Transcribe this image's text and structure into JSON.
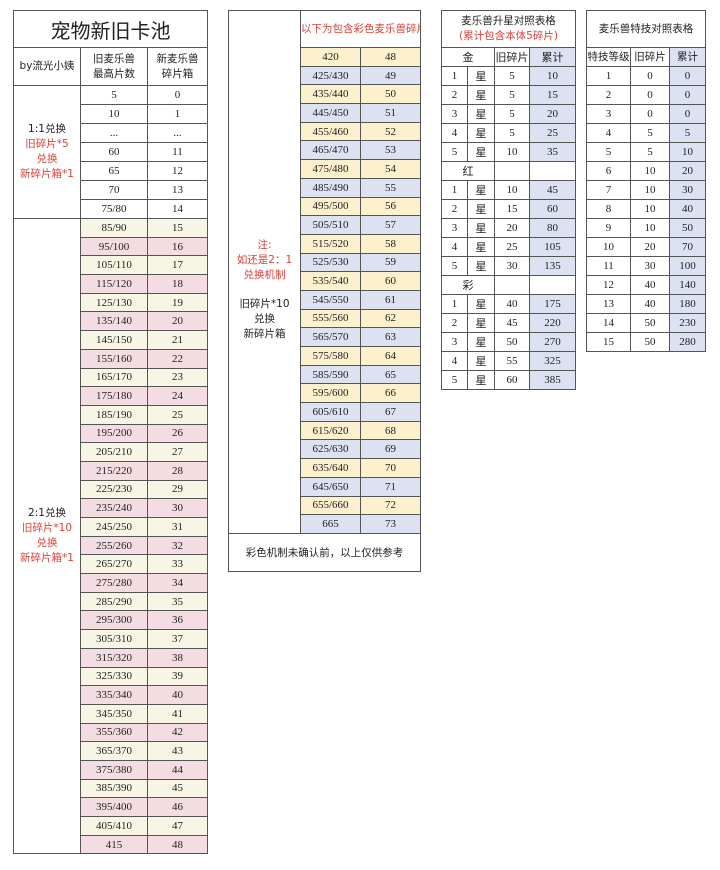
{
  "pool_table": {
    "title": "宠物新旧卡池",
    "author": "by流光小姨",
    "col_old": "旧麦乐兽\n最高片数",
    "col_new": "新麦乐兽\n碎片箱",
    "group1": {
      "line1": "1:1兑换",
      "line2": "旧碎片*5",
      "line3": "兑换",
      "line4": "新碎片箱*1",
      "rows": [
        [
          "5",
          "0"
        ],
        [
          "10",
          "1"
        ],
        [
          "...",
          "..."
        ],
        [
          "60",
          "11"
        ],
        [
          "65",
          "12"
        ],
        [
          "70",
          "13"
        ],
        [
          "75/80",
          "14"
        ]
      ]
    },
    "group2": {
      "line1": "2:1兑换",
      "line2": "旧碎片*10",
      "line3": "兑换",
      "line4": "新碎片箱*1",
      "rows": [
        [
          "85/90",
          "15"
        ],
        [
          "95/100",
          "16"
        ],
        [
          "105/110",
          "17"
        ],
        [
          "115/120",
          "18"
        ],
        [
          "125/130",
          "19"
        ],
        [
          "135/140",
          "20"
        ],
        [
          "145/150",
          "21"
        ],
        [
          "155/160",
          "22"
        ],
        [
          "165/170",
          "23"
        ],
        [
          "175/180",
          "24"
        ],
        [
          "185/190",
          "25"
        ],
        [
          "195/200",
          "26"
        ],
        [
          "205/210",
          "27"
        ],
        [
          "215/220",
          "28"
        ],
        [
          "225/230",
          "29"
        ],
        [
          "235/240",
          "30"
        ],
        [
          "245/250",
          "31"
        ],
        [
          "255/260",
          "32"
        ],
        [
          "265/270",
          "33"
        ],
        [
          "275/280",
          "34"
        ],
        [
          "285/290",
          "35"
        ],
        [
          "295/300",
          "36"
        ],
        [
          "305/310",
          "37"
        ],
        [
          "315/320",
          "38"
        ],
        [
          "325/330",
          "39"
        ],
        [
          "335/340",
          "40"
        ],
        [
          "345/350",
          "41"
        ],
        [
          "355/360",
          "42"
        ],
        [
          "365/370",
          "43"
        ],
        [
          "375/380",
          "44"
        ],
        [
          "385/390",
          "45"
        ],
        [
          "395/400",
          "46"
        ],
        [
          "405/410",
          "47"
        ],
        [
          "415",
          "48"
        ]
      ]
    }
  },
  "color_table": {
    "header": "以下为包含彩色麦乐兽碎片",
    "note": {
      "line1": "注:",
      "line2": "如还是2：1",
      "line3": "兑换机制",
      "line4": "旧碎片*10",
      "line5": "兑换",
      "line6": "新碎片箱"
    },
    "rows": [
      [
        "420",
        "48"
      ],
      [
        "425/430",
        "49"
      ],
      [
        "435/440",
        "50"
      ],
      [
        "445/450",
        "51"
      ],
      [
        "455/460",
        "52"
      ],
      [
        "465/470",
        "53"
      ],
      [
        "475/480",
        "54"
      ],
      [
        "485/490",
        "55"
      ],
      [
        "495/500",
        "56"
      ],
      [
        "505/510",
        "57"
      ],
      [
        "515/520",
        "58"
      ],
      [
        "525/530",
        "59"
      ],
      [
        "535/540",
        "60"
      ],
      [
        "545/550",
        "61"
      ],
      [
        "555/560",
        "62"
      ],
      [
        "565/570",
        "63"
      ],
      [
        "575/580",
        "64"
      ],
      [
        "585/590",
        "65"
      ],
      [
        "595/600",
        "66"
      ],
      [
        "605/610",
        "67"
      ],
      [
        "615/620",
        "68"
      ],
      [
        "625/630",
        "69"
      ],
      [
        "635/640",
        "70"
      ],
      [
        "645/650",
        "71"
      ],
      [
        "655/660",
        "72"
      ],
      [
        "665",
        "73"
      ]
    ],
    "footer": "彩色机制未确认前，以上仅供参考"
  },
  "star_table": {
    "title": "麦乐兽升星对照表格",
    "subtitle": "(累计包含本体5碎片)",
    "col_old": "旧碎片",
    "col_total": "累计",
    "star_label": "星",
    "sections": [
      {
        "name": "金",
        "rows": [
          [
            "1",
            "5",
            "10"
          ],
          [
            "2",
            "5",
            "15"
          ],
          [
            "3",
            "5",
            "20"
          ],
          [
            "4",
            "5",
            "25"
          ],
          [
            "5",
            "10",
            "35"
          ]
        ]
      },
      {
        "name": "红",
        "rows": [
          [
            "1",
            "10",
            "45"
          ],
          [
            "2",
            "15",
            "60"
          ],
          [
            "3",
            "20",
            "80"
          ],
          [
            "4",
            "25",
            "105"
          ],
          [
            "5",
            "30",
            "135"
          ]
        ]
      },
      {
        "name": "彩",
        "rows": [
          [
            "1",
            "40",
            "175"
          ],
          [
            "2",
            "45",
            "220"
          ],
          [
            "3",
            "50",
            "270"
          ],
          [
            "4",
            "55",
            "325"
          ],
          [
            "5",
            "60",
            "385"
          ]
        ]
      }
    ]
  },
  "skill_table": {
    "title": "麦乐兽特技对照表格",
    "col_level": "特技等级",
    "col_old": "旧碎片",
    "col_total": "累计",
    "rows": [
      [
        "1",
        "0",
        "0"
      ],
      [
        "2",
        "0",
        "0"
      ],
      [
        "3",
        "0",
        "0"
      ],
      [
        "4",
        "5",
        "5"
      ],
      [
        "5",
        "5",
        "10"
      ],
      [
        "6",
        "10",
        "20"
      ],
      [
        "7",
        "10",
        "30"
      ],
      [
        "8",
        "10",
        "40"
      ],
      [
        "9",
        "10",
        "50"
      ],
      [
        "10",
        "20",
        "70"
      ],
      [
        "11",
        "30",
        "100"
      ],
      [
        "12",
        "40",
        "140"
      ],
      [
        "13",
        "40",
        "180"
      ],
      [
        "14",
        "50",
        "230"
      ],
      [
        "15",
        "50",
        "280"
      ]
    ]
  },
  "colors": {
    "red_text": "#d9403a",
    "beige": "#f7f5e3",
    "pink": "#f4dde2",
    "yellow": "#fdf0cc",
    "blue": "#dce2f2"
  }
}
